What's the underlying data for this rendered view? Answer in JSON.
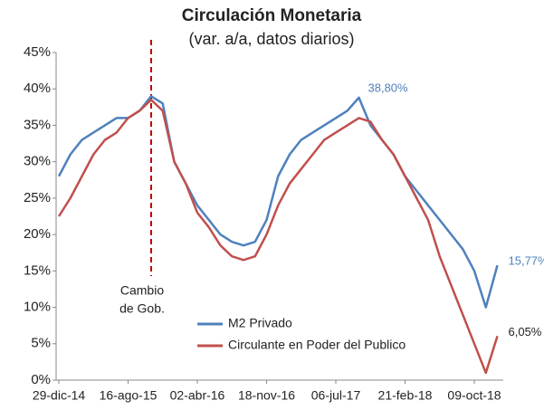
{
  "chart_data": {
    "type": "line",
    "title": "Circulación  Monetaria",
    "subtitle": "(var. a/a, datos diarios)",
    "categories": [
      "29-dic-14",
      null,
      null,
      null,
      null,
      null,
      "16-ago-15",
      null,
      null,
      null,
      null,
      null,
      "02-abr-16",
      null,
      null,
      null,
      null,
      null,
      "18-nov-16",
      null,
      null,
      null,
      null,
      null,
      "06-jul-17",
      null,
      null,
      null,
      null,
      null,
      "21-feb-18",
      null,
      null,
      null,
      null,
      null,
      "09-oct-18",
      null,
      null
    ],
    "series": [
      {
        "name": "M2 Privado",
        "color": "#4f81bd",
        "values": [
          28,
          31,
          33,
          34,
          35,
          36,
          36,
          37,
          39,
          38,
          30,
          27,
          24,
          22,
          20,
          19,
          18.5,
          19,
          22,
          28,
          31,
          33,
          34,
          35,
          36,
          37,
          38.8,
          35,
          33,
          31,
          28,
          26,
          24,
          22,
          20,
          18,
          15,
          10,
          15.77
        ],
        "value_labels": [
          null,
          null,
          null,
          null,
          null,
          null,
          null,
          null,
          null,
          null,
          null,
          null,
          null,
          null,
          null,
          null,
          null,
          null,
          null,
          null,
          null,
          null,
          null,
          null,
          null,
          null,
          "38,80%",
          null,
          null,
          null,
          null,
          null,
          null,
          null,
          null,
          null,
          null,
          null,
          "15,77%"
        ]
      },
      {
        "name": "Circulante en Poder del Publico",
        "color": "#c0504d",
        "values": [
          22.5,
          25,
          28,
          31,
          33,
          34,
          36,
          37,
          38.5,
          37,
          30,
          27,
          23,
          21,
          18.5,
          17,
          16.5,
          17,
          20,
          24,
          27,
          29,
          31,
          33,
          34,
          35,
          36,
          35.5,
          33,
          31,
          28,
          25,
          22,
          17,
          13,
          9,
          5,
          1,
          6.05
        ],
        "value_labels": [
          null,
          null,
          null,
          null,
          null,
          null,
          null,
          null,
          null,
          null,
          null,
          null,
          null,
          null,
          null,
          null,
          null,
          null,
          null,
          null,
          null,
          null,
          null,
          null,
          null,
          null,
          null,
          null,
          null,
          null,
          null,
          null,
          null,
          null,
          null,
          null,
          null,
          null,
          "6,05%"
        ]
      }
    ],
    "annotation": [
      "Cambio",
      "de Gob."
    ],
    "ylim": [
      0,
      45
    ],
    "yticks": [
      {
        "value": 0,
        "label": "0%"
      },
      {
        "value": 5,
        "label": "5%"
      },
      {
        "value": 10,
        "label": "10%"
      },
      {
        "value": 15,
        "label": "15%"
      },
      {
        "value": 20,
        "label": "20%"
      },
      {
        "value": 25,
        "label": "25%"
      },
      {
        "value": 30,
        "label": "30%"
      },
      {
        "value": 35,
        "label": "35%"
      },
      {
        "value": 40,
        "label": "40%"
      },
      {
        "value": 45,
        "label": "45%"
      }
    ],
    "grid": false,
    "legend": "bottom"
  }
}
